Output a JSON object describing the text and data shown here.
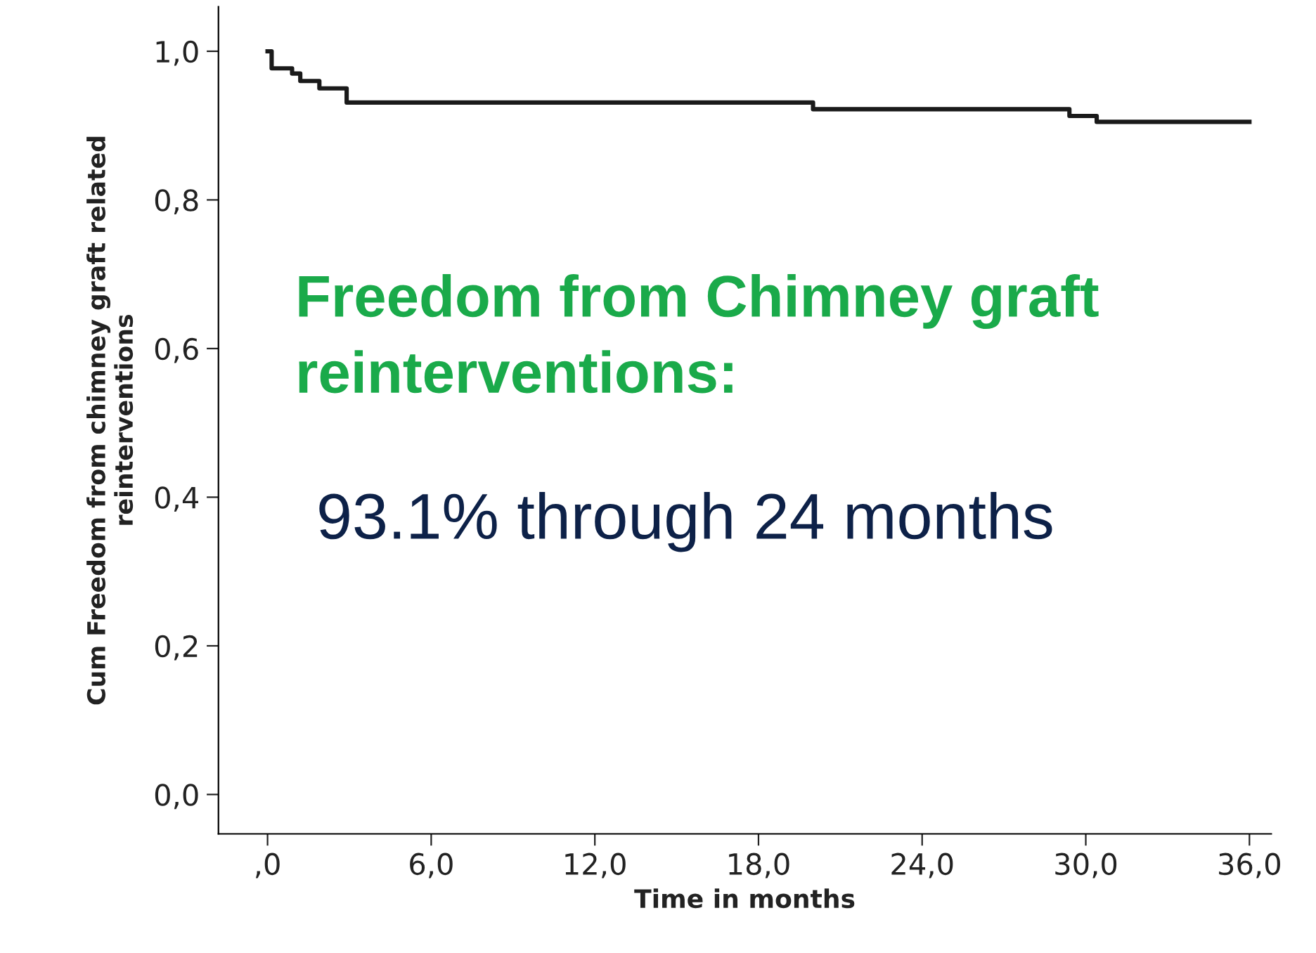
{
  "chart_data": {
    "type": "step",
    "xlabel": "Time in months",
    "ylabel": "Cum Freedom from chimney graft related\nreinterventions",
    "x": [
      0,
      0.15,
      0.9,
      1.2,
      1.9,
      2.9,
      20,
      29.4,
      30.4,
      36
    ],
    "series": [
      {
        "color": "#1a1a1a",
        "values": [
          1.0,
          0.977,
          0.97,
          0.96,
          0.95,
          0.931,
          0.922,
          0.913,
          0.905,
          0.905
        ]
      }
    ],
    "xlim": [
      -1.8,
      36.8
    ],
    "ylim": [
      -0.053,
      1.06
    ],
    "xticks": [
      {
        "value": 0,
        "label": ",0"
      },
      {
        "value": 6,
        "label": "6,0"
      },
      {
        "value": 12,
        "label": "12,0"
      },
      {
        "value": 18,
        "label": "18,0"
      },
      {
        "value": 24,
        "label": "24,0"
      },
      {
        "value": 30,
        "label": "30,0"
      },
      {
        "value": 36,
        "label": "36,0"
      }
    ],
    "yticks": [
      {
        "value": 0,
        "label": "0,0"
      },
      {
        "value": 0.2,
        "label": "0,2"
      },
      {
        "value": 0.4,
        "label": "0,4"
      },
      {
        "value": 0.6,
        "label": "0,6"
      },
      {
        "value": 0.8,
        "label": "0,8"
      },
      {
        "value": 1.0,
        "label": "1,0"
      }
    ],
    "annotations": [
      "Freedom from Chimney graft reinterventions:",
      "93.1% through 24 months"
    ],
    "grid": false,
    "legend": false
  }
}
